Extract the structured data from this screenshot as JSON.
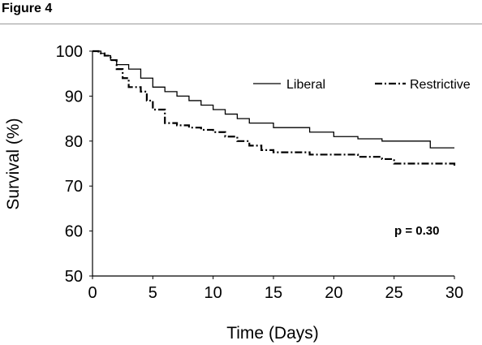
{
  "figure_label": "Figure 4",
  "chart_data": {
    "type": "line",
    "xlabel": "Time (Days)",
    "ylabel": "Survival (%)",
    "xlim": [
      0,
      30
    ],
    "ylim": [
      50,
      100
    ],
    "xticks": [
      0,
      5,
      10,
      15,
      20,
      25,
      30
    ],
    "yticks": [
      50,
      60,
      70,
      80,
      90,
      100
    ],
    "grid": false,
    "legend_position": "top-right",
    "annotation": "p = 0.30",
    "series": [
      {
        "name": "Liberal",
        "style": "solid",
        "color": "#000000",
        "x": [
          0,
          0.5,
          0.7,
          1,
          1.5,
          2,
          3,
          4,
          5,
          6,
          7,
          8,
          9,
          10,
          11,
          12,
          13,
          14,
          15,
          18,
          20,
          21,
          22,
          24,
          26,
          28,
          30
        ],
        "y": [
          100,
          100,
          99.5,
          99,
          98,
          97,
          96,
          94,
          92,
          91,
          90,
          89,
          88,
          87,
          86,
          85,
          84,
          84,
          83,
          82,
          81,
          81,
          80.5,
          80,
          80,
          78.5,
          78.5
        ]
      },
      {
        "name": "Restrictive",
        "style": "dash-dot",
        "color": "#000000",
        "x": [
          0,
          0.5,
          1,
          1.5,
          2,
          2.5,
          3,
          4,
          4.5,
          5,
          6,
          7,
          8,
          9,
          10,
          11,
          12,
          13,
          14,
          15,
          18,
          22,
          24,
          25,
          27,
          29,
          30
        ],
        "y": [
          100,
          99.5,
          99,
          98,
          96,
          94,
          92,
          91,
          89,
          87,
          84,
          83.5,
          83,
          82.5,
          82,
          81,
          80,
          79,
          78,
          77.5,
          77,
          76.5,
          76,
          75,
          75,
          75,
          74
        ]
      }
    ]
  }
}
